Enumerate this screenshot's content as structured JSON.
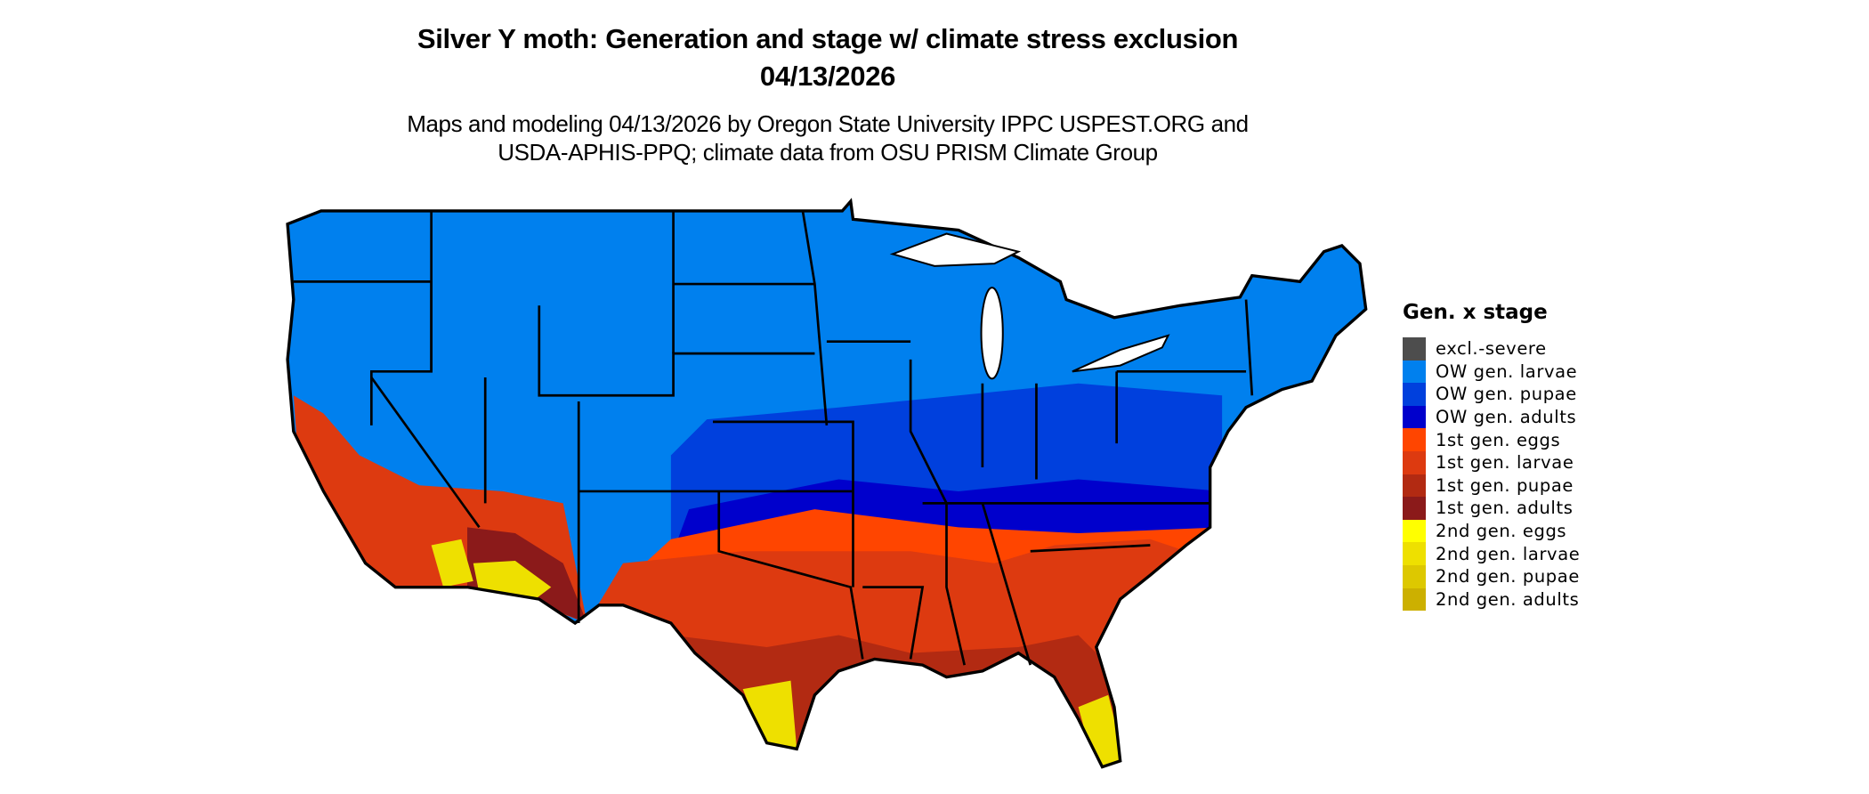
{
  "header": {
    "title": "Silver Y moth: Generation and stage w/ climate stress exclusion",
    "date": "04/13/2026",
    "subtitle_line1": "Maps and modeling 04/13/2026 by Oregon State University IPPC USPEST.ORG and",
    "subtitle_line2": "USDA-APHIS-PPQ; climate data from OSU PRISM Climate Group"
  },
  "legend": {
    "title": "Gen. x stage",
    "items": [
      {
        "label": "excl.-severe",
        "color": "#4d4d4d"
      },
      {
        "label": "OW gen. larvae",
        "color": "#0080ee"
      },
      {
        "label": "OW gen. pupae",
        "color": "#0040dd"
      },
      {
        "label": "OW gen. adults",
        "color": "#0000cc"
      },
      {
        "label": "1st gen. eggs",
        "color": "#ff4500"
      },
      {
        "label": "1st gen. larvae",
        "color": "#dd3a10"
      },
      {
        "label": "1st gen. pupae",
        "color": "#b22a12"
      },
      {
        "label": "1st gen. adults",
        "color": "#8b1a1a"
      },
      {
        "label": "2nd gen. eggs",
        "color": "#ffff00"
      },
      {
        "label": "2nd gen. larvae",
        "color": "#eee000"
      },
      {
        "label": "2nd gen. pupae",
        "color": "#ddc800"
      },
      {
        "label": "2nd gen. adults",
        "color": "#ccb000"
      }
    ]
  }
}
